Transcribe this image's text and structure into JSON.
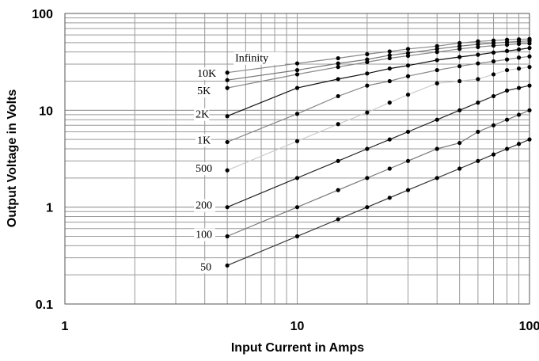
{
  "chart_data": {
    "type": "line",
    "title": "",
    "xlabel": "Input Current in Amps",
    "ylabel": "Output Voltage in Volts",
    "xscale": "log",
    "yscale": "log",
    "xlim": [
      1,
      100
    ],
    "ylim": [
      0.1,
      100
    ],
    "grid": true,
    "legend": "none",
    "x_ticks": [
      "1",
      "10",
      "100"
    ],
    "y_ticks": [
      "0.1",
      "1",
      "10",
      "100"
    ],
    "x": [
      5,
      10,
      15,
      20,
      25,
      30,
      40,
      50,
      60,
      70,
      80,
      90,
      100
    ],
    "series": [
      {
        "name": "50",
        "color": "#333333",
        "values": [
          0.25,
          0.5,
          0.75,
          1.0,
          1.25,
          1.5,
          2.0,
          2.5,
          3.0,
          3.5,
          4.0,
          4.5,
          5.0
        ]
      },
      {
        "name": "100",
        "color": "#777777",
        "values": [
          0.5,
          1.0,
          1.5,
          2.0,
          2.5,
          3.0,
          4.0,
          4.6,
          6.0,
          7.0,
          8.0,
          9.0,
          10.0
        ]
      },
      {
        "name": "200",
        "color": "#222222",
        "values": [
          1.0,
          2.0,
          3.0,
          4.0,
          5.0,
          6.0,
          8.0,
          10.0,
          12.0,
          14.0,
          16.0,
          17.0,
          18.0
        ]
      },
      {
        "name": "500",
        "color": "#cccccc",
        "values": [
          2.4,
          4.8,
          7.2,
          9.5,
          12.0,
          14.5,
          19.0,
          20.0,
          21.0,
          23.5,
          26.0,
          27.0,
          28.0
        ]
      },
      {
        "name": "1K",
        "color": "#888888",
        "values": [
          4.7,
          9.2,
          14.0,
          18.0,
          20.0,
          22.5,
          26.0,
          28.5,
          30.5,
          32.0,
          33.5,
          35.0,
          36.0
        ]
      },
      {
        "name": "2K",
        "color": "#111111",
        "values": [
          8.7,
          17.0,
          21.0,
          24.0,
          27.0,
          29.0,
          33.0,
          35.5,
          37.5,
          39.5,
          41.0,
          42.5,
          44.0
        ]
      },
      {
        "name": "5K",
        "color": "#888888",
        "values": [
          17.0,
          23.5,
          28.0,
          31.5,
          34.5,
          36.5,
          40.0,
          43.0,
          45.0,
          46.5,
          47.5,
          48.5,
          49.0
        ]
      },
      {
        "name": "10K",
        "color": "#777777",
        "values": [
          20.5,
          26.0,
          30.5,
          33.5,
          37.0,
          39.0,
          43.0,
          46.0,
          48.0,
          49.5,
          50.5,
          51.5,
          52.0
        ]
      },
      {
        "name": "Infinity",
        "color": "#888888",
        "values": [
          24.5,
          30.5,
          34.5,
          38.0,
          40.5,
          43.0,
          46.0,
          49.5,
          51.5,
          52.5,
          53.5,
          54.0,
          54.5
        ]
      }
    ]
  }
}
